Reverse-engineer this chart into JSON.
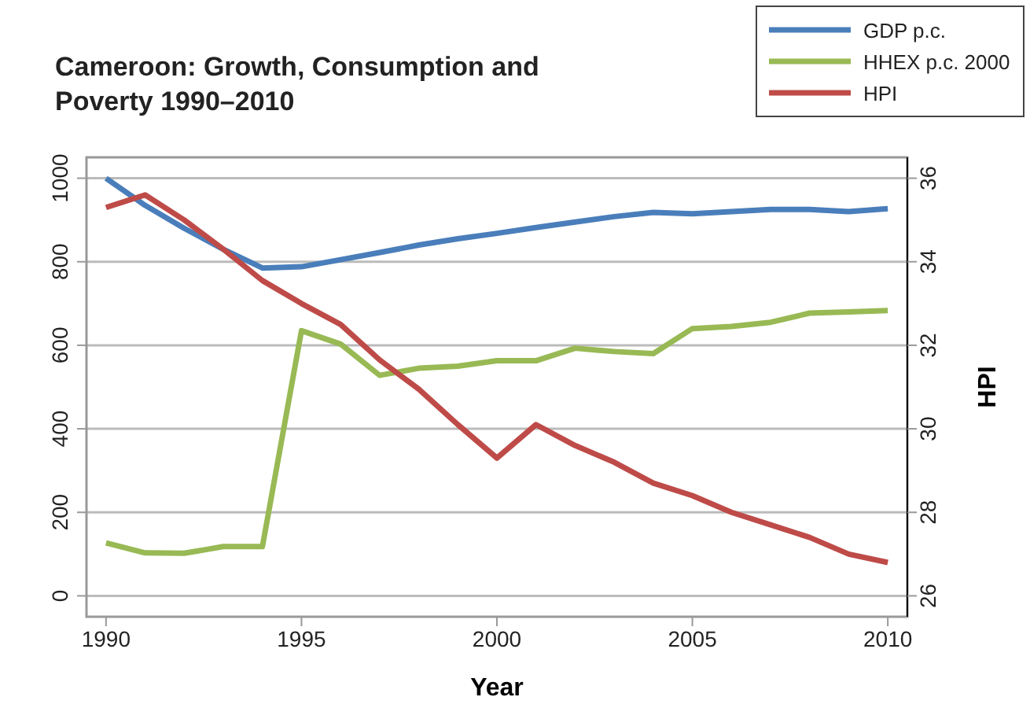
{
  "chart_data": {
    "type": "line",
    "title": "Cameroon: Growth, Consumption and Poverty 1990–2010",
    "xlabel": "Year",
    "y2label": "HPI",
    "x": [
      1990,
      1991,
      1992,
      1993,
      1994,
      1995,
      1996,
      1997,
      1998,
      1999,
      2000,
      2001,
      2002,
      2003,
      2004,
      2005,
      2006,
      2007,
      2008,
      2009,
      2010
    ],
    "series": [
      {
        "name": "GDP p.c.",
        "color": "#4a7ebb",
        "values": [
          1000,
          935,
          880,
          830,
          785,
          788,
          805,
          822,
          840,
          855,
          868,
          882,
          895,
          908,
          918,
          915,
          920,
          925,
          925,
          920,
          927
        ]
      },
      {
        "name": "HHEX p.c. 2000",
        "color": "#98b954",
        "values": [
          127,
          103,
          102,
          118,
          118,
          635,
          603,
          528,
          545,
          550,
          563,
          563,
          593,
          585,
          580,
          640,
          645,
          655,
          677,
          680,
          683
        ]
      },
      {
        "name": "HPI",
        "color": "#be4b48",
        "axis": "y2",
        "values": [
          35.3,
          35.6,
          35.0,
          34.3,
          33.55,
          33.0,
          32.5,
          31.65,
          30.95,
          30.1,
          29.3,
          30.1,
          29.6,
          29.2,
          28.7,
          28.4,
          28.0,
          27.7,
          27.4,
          27.0,
          26.8
        ]
      }
    ],
    "xlim": [
      1989.5,
      2010.5
    ],
    "xticks": [
      1990,
      1995,
      2000,
      2005,
      2010
    ],
    "ylim": [
      -50,
      1050
    ],
    "yticks": [
      0,
      200,
      400,
      600,
      800,
      1000
    ],
    "y2lim": [
      25.5,
      36.5
    ],
    "y2ticks": [
      26,
      28,
      30,
      32,
      34,
      36
    ],
    "grid": "y",
    "legend": "top right",
    "line_style": "solid",
    "marker": "none"
  }
}
